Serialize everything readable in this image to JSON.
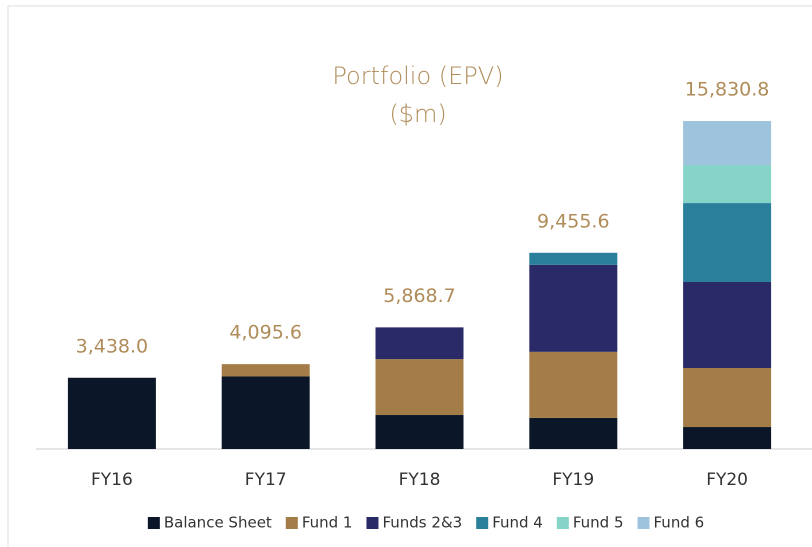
{
  "chart_data": {
    "type": "stacked_bar",
    "title": "Portfolio (EPV)",
    "subtitle": "($m)",
    "categories": [
      "FY16",
      "FY17",
      "FY18",
      "FY19",
      "FY20"
    ],
    "series": [
      {
        "name": "Balance Sheet",
        "color": "#0b1628",
        "values": [
          3438.0,
          3500,
          1640,
          1500,
          1060
        ]
      },
      {
        "name": "Fund 1",
        "color": "#a47c48",
        "values": [
          null,
          595.6,
          2700,
          3190,
          2850
        ]
      },
      {
        "name": "Funds 2&3",
        "color": "#2a2a68",
        "values": [
          null,
          null,
          1530,
          4200,
          4150
        ]
      },
      {
        "name": "Fund 4",
        "color": "#2a7f9a",
        "values": [
          null,
          null,
          null,
          580,
          3810
        ]
      },
      {
        "name": "Fund 5",
        "color": "#86d3c8",
        "values": [
          null,
          null,
          null,
          null,
          1840
        ]
      },
      {
        "name": "Fund 6",
        "color": "#9ec3dd",
        "values": [
          null,
          null,
          null,
          null,
          2120
        ]
      }
    ],
    "totals": [
      3438.0,
      4095.6,
      5868.7,
      9455.6,
      15830.8
    ],
    "total_labels": [
      "3,438.0",
      "4,095.6",
      "5,868.7",
      "9,455.6",
      "15,830.8"
    ]
  }
}
